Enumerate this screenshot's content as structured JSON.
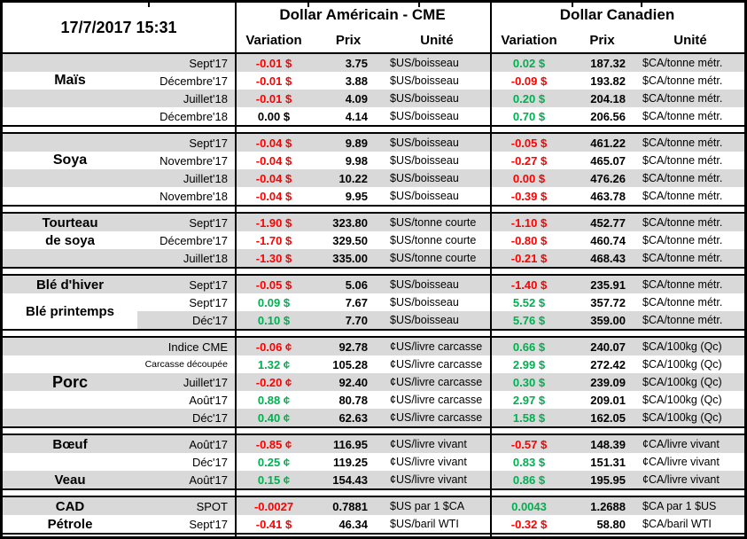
{
  "meta": {
    "timestamp": "17/7/2017 15:31"
  },
  "header": {
    "us_title": "Dollar Américain - CME",
    "ca_title": "Dollar Canadien",
    "columns": [
      "Variation",
      "Prix",
      "Unité"
    ]
  },
  "colors": {
    "positive": "#00B050",
    "negative": "#FF0000",
    "neutral": "#000000",
    "row_stripe": "#D9D9D9",
    "border": "#000000"
  },
  "sections": [
    {
      "labels": [
        {
          "text": "Maïs",
          "row": 1,
          "span": 1,
          "size": "lg"
        }
      ],
      "rows": [
        {
          "month": "Sept'17",
          "us_var": "-0.01 $",
          "us_dir": "neg",
          "us_price": "3.75",
          "us_unit": "$US/boisseau",
          "ca_var": "0.02 $",
          "ca_dir": "pos",
          "ca_price": "187.32",
          "ca_unit": "$CA/tonne métr."
        },
        {
          "month": "Décembre'17",
          "us_var": "-0.01 $",
          "us_dir": "neg",
          "us_price": "3.88",
          "us_unit": "$US/boisseau",
          "ca_var": "-0.09 $",
          "ca_dir": "neg",
          "ca_price": "193.82",
          "ca_unit": "$CA/tonne métr."
        },
        {
          "month": "Juillet'18",
          "us_var": "-0.01 $",
          "us_dir": "neg",
          "us_price": "4.09",
          "us_unit": "$US/boisseau",
          "ca_var": "0.20 $",
          "ca_dir": "pos",
          "ca_price": "204.18",
          "ca_unit": "$CA/tonne métr."
        },
        {
          "month": "Décembre'18",
          "us_var": "0.00 $",
          "us_dir": "neu",
          "us_price": "4.14",
          "us_unit": "$US/boisseau",
          "ca_var": "0.70 $",
          "ca_dir": "pos",
          "ca_price": "206.56",
          "ca_unit": "$CA/tonne métr."
        }
      ]
    },
    {
      "labels": [
        {
          "text": "Soya",
          "row": 1,
          "span": 1,
          "size": "lg"
        }
      ],
      "rows": [
        {
          "month": "Sept'17",
          "us_var": "-0.04 $",
          "us_dir": "neg",
          "us_price": "9.89",
          "us_unit": "$US/boisseau",
          "ca_var": "-0.05 $",
          "ca_dir": "neg",
          "ca_price": "461.22",
          "ca_unit": "$CA/tonne métr."
        },
        {
          "month": "Novembre'17",
          "us_var": "-0.04 $",
          "us_dir": "neg",
          "us_price": "9.98",
          "us_unit": "$US/boisseau",
          "ca_var": "-0.27 $",
          "ca_dir": "neg",
          "ca_price": "465.07",
          "ca_unit": "$CA/tonne métr."
        },
        {
          "month": "Juillet'18",
          "us_var": "-0.04 $",
          "us_dir": "neg",
          "us_price": "10.22",
          "us_unit": "$US/boisseau",
          "ca_var": "0.00 $",
          "ca_dir": "neg",
          "ca_price": "476.26",
          "ca_unit": "$CA/tonne métr."
        },
        {
          "month": "Novembre'18",
          "us_var": "-0.04 $",
          "us_dir": "neg",
          "us_price": "9.95",
          "us_unit": "$US/boisseau",
          "ca_var": "-0.39 $",
          "ca_dir": "neg",
          "ca_price": "463.78",
          "ca_unit": "$CA/tonne métr."
        }
      ]
    },
    {
      "labels": [
        {
          "text": "Tourteau",
          "row": 0,
          "span": 1,
          "size": "md"
        },
        {
          "text": "de soya",
          "row": 1,
          "span": 1,
          "size": "md"
        }
      ],
      "rows": [
        {
          "month": "Sept'17",
          "us_var": "-1.90 $",
          "us_dir": "neg",
          "us_price": "323.80",
          "us_unit": "$US/tonne courte",
          "ca_var": "-1.10 $",
          "ca_dir": "neg",
          "ca_price": "452.77",
          "ca_unit": "$CA/tonne métr."
        },
        {
          "month": "Décembre'17",
          "us_var": "-1.70 $",
          "us_dir": "neg",
          "us_price": "329.50",
          "us_unit": "$US/tonne courte",
          "ca_var": "-0.80 $",
          "ca_dir": "neg",
          "ca_price": "460.74",
          "ca_unit": "$CA/tonne métr."
        },
        {
          "month": "Juillet'18",
          "us_var": "-1.30 $",
          "us_dir": "neg",
          "us_price": "335.00",
          "us_unit": "$US/tonne courte",
          "ca_var": "-0.21 $",
          "ca_dir": "neg",
          "ca_price": "468.43",
          "ca_unit": "$CA/tonne métr."
        }
      ]
    },
    {
      "labels": [
        {
          "text": "Blé d'hiver",
          "row": 0,
          "span": 1,
          "size": "md"
        },
        {
          "text": "Blé printemps",
          "row": 1,
          "span": 2,
          "size": "md"
        }
      ],
      "rows": [
        {
          "month": "Sept'17",
          "us_var": "-0.05 $",
          "us_dir": "neg",
          "us_price": "5.06",
          "us_unit": "$US/boisseau",
          "ca_var": "-1.40 $",
          "ca_dir": "neg",
          "ca_price": "235.91",
          "ca_unit": "$CA/tonne métr."
        },
        {
          "month": "Sept'17",
          "us_var": "0.09 $",
          "us_dir": "pos",
          "us_price": "7.67",
          "us_unit": "$US/boisseau",
          "ca_var": "5.52 $",
          "ca_dir": "pos",
          "ca_price": "357.72",
          "ca_unit": "$CA/tonne métr."
        },
        {
          "month": "Déc'17",
          "us_var": "0.10 $",
          "us_dir": "pos",
          "us_price": "7.70",
          "us_unit": "$US/boisseau",
          "ca_var": "5.76 $",
          "ca_dir": "pos",
          "ca_price": "359.00",
          "ca_unit": "$CA/tonne métr.",
          "label_white": true
        }
      ]
    },
    {
      "labels": [
        {
          "text": "Porc",
          "row": 2,
          "span": 1,
          "size": "xl"
        }
      ],
      "rows": [
        {
          "month": "Indice CME",
          "us_var": "-0.06 ¢",
          "us_dir": "neg",
          "us_price": "92.78",
          "us_unit": "¢US/livre carcasse",
          "ca_var": "0.66 $",
          "ca_dir": "pos",
          "ca_price": "240.07",
          "ca_unit": "$CA/100kg (Qc)"
        },
        {
          "month": "Carcasse découpée",
          "month_small": true,
          "us_var": "1.32 ¢",
          "us_dir": "pos",
          "us_price": "105.28",
          "us_unit": "¢US/livre carcasse",
          "ca_var": "2.99 $",
          "ca_dir": "pos",
          "ca_price": "272.42",
          "ca_unit": "$CA/100kg (Qc)"
        },
        {
          "month": "Juillet'17",
          "us_var": "-0.20 ¢",
          "us_dir": "neg",
          "us_price": "92.40",
          "us_unit": "¢US/livre carcasse",
          "ca_var": "0.30 $",
          "ca_dir": "pos",
          "ca_price": "239.09",
          "ca_unit": "$CA/100kg (Qc)"
        },
        {
          "month": "Août'17",
          "us_var": "0.88 ¢",
          "us_dir": "pos",
          "us_price": "80.78",
          "us_unit": "¢US/livre carcasse",
          "ca_var": "2.97 $",
          "ca_dir": "pos",
          "ca_price": "209.01",
          "ca_unit": "$CA/100kg (Qc)"
        },
        {
          "month": "Déc'17",
          "us_var": "0.40 ¢",
          "us_dir": "pos",
          "us_price": "62.63",
          "us_unit": "¢US/livre carcasse",
          "ca_var": "1.58 $",
          "ca_dir": "pos",
          "ca_price": "162.05",
          "ca_unit": "$CA/100kg (Qc)"
        }
      ]
    },
    {
      "labels": [
        {
          "text": "Bœuf",
          "row": 0,
          "span": 1,
          "size": "md"
        },
        {
          "text": "Veau",
          "row": 2,
          "span": 1,
          "size": "md"
        }
      ],
      "rows": [
        {
          "month": "Août'17",
          "us_var": "-0.85 ¢",
          "us_dir": "neg",
          "us_price": "116.95",
          "us_unit": "¢US/livre vivant",
          "ca_var": "-0.57 $",
          "ca_dir": "neg",
          "ca_price": "148.39",
          "ca_unit": "¢CA/livre vivant"
        },
        {
          "month": "Déc'17",
          "us_var": "0.25 ¢",
          "us_dir": "pos",
          "us_price": "119.25",
          "us_unit": "¢US/livre vivant",
          "ca_var": "0.83 $",
          "ca_dir": "pos",
          "ca_price": "151.31",
          "ca_unit": "¢CA/livre vivant"
        },
        {
          "month": "Août'17",
          "us_var": "0.15 ¢",
          "us_dir": "pos",
          "us_price": "154.43",
          "us_unit": "¢US/livre vivant",
          "ca_var": "0.86 $",
          "ca_dir": "pos",
          "ca_price": "195.95",
          "ca_unit": "¢CA/livre vivant"
        }
      ]
    },
    {
      "labels": [
        {
          "text": "CAD",
          "row": 0,
          "span": 1,
          "size": "md"
        },
        {
          "text": "Pétrole",
          "row": 1,
          "span": 1,
          "size": "md"
        }
      ],
      "rows": [
        {
          "month": "SPOT",
          "us_var": "-0.0027",
          "us_dir": "neg",
          "us_price": "0.7881",
          "us_unit": "$US par 1 $CA",
          "ca_var": "0.0043",
          "ca_dir": "pos",
          "ca_price": "1.2688",
          "ca_unit": "$CA par 1 $US"
        },
        {
          "month": "Sept'17",
          "us_var": "-0.41 $",
          "us_dir": "neg",
          "us_price": "46.34",
          "us_unit": "$US/baril WTI",
          "ca_var": "-0.32 $",
          "ca_dir": "neg",
          "ca_price": "58.80",
          "ca_unit": "$CA/baril WTI"
        }
      ]
    }
  ]
}
